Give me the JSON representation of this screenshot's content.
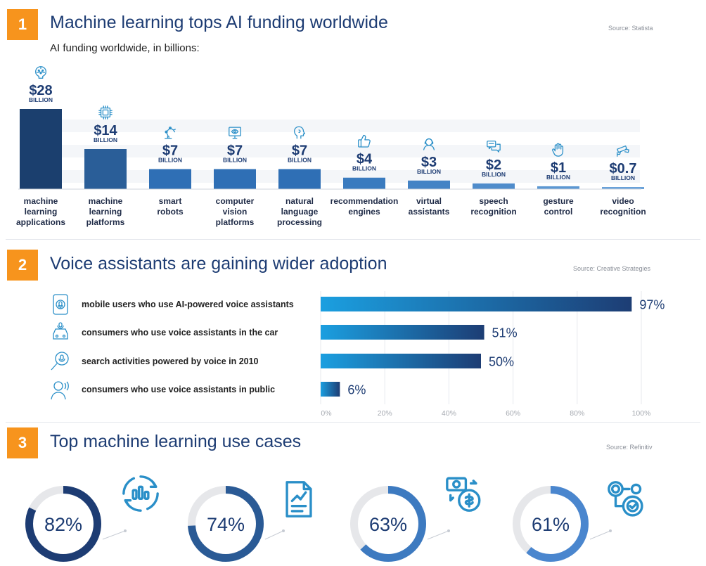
{
  "sections": [
    {
      "number": "1",
      "title": "Machine learning tops AI funding worldwide",
      "source": "Source: Statista",
      "subtitle": "AI funding worldwide, in billions:"
    },
    {
      "number": "2",
      "title": "Voice assistants are gaining wider adoption",
      "source": "Source: Creative Strategies"
    },
    {
      "number": "3",
      "title": "Top machine learning use cases",
      "source": "Source: Refinitiv"
    }
  ],
  "chart_data": [
    {
      "type": "bar",
      "title": "AI funding worldwide, in billions:",
      "unit_label": "BILLION",
      "categories": [
        [
          "machine",
          "learning",
          "applications"
        ],
        [
          "machine",
          "learning",
          "platforms"
        ],
        [
          "smart",
          "robots"
        ],
        [
          "computer",
          "vision",
          "platforms"
        ],
        [
          "natural",
          "language",
          "processing"
        ],
        [
          "recommendation",
          "engines"
        ],
        [
          "virtual",
          "assistants"
        ],
        [
          "speech",
          "recognition"
        ],
        [
          "gesture",
          "control"
        ],
        [
          "video",
          "recognition"
        ]
      ],
      "values": [
        28,
        14,
        7,
        7,
        7,
        4,
        3,
        2,
        1,
        0.7
      ],
      "value_labels": [
        "$28",
        "$14",
        "$7",
        "$7",
        "$7",
        "$4",
        "$3",
        "$2",
        "$1",
        "$0.7"
      ],
      "icons": [
        "brain-circuit-icon",
        "chip-icon",
        "robot-arm-icon",
        "monitor-eye-icon",
        "head-speech-icon",
        "thumbs-up-icon",
        "assistant-avatar-icon",
        "chat-bubbles-icon",
        "raised-hand-icon",
        "security-camera-icon"
      ],
      "colors": [
        "#1b3f6e",
        "#2a5e98",
        "#2f6fb5",
        "#2f6fb5",
        "#2f6fb5",
        "#3a7bbf",
        "#4483c5",
        "#4f8ccb",
        "#5b97d2",
        "#6aa2d9"
      ]
    },
    {
      "type": "bar",
      "orientation": "horizontal",
      "categories": [
        "mobile users who use AI-powered voice assistants",
        "consumers who use voice assistants in the car",
        "search activities powered by voice in 2010",
        "consumers who use voice assistants in public"
      ],
      "values": [
        97,
        51,
        50,
        6
      ],
      "value_labels": [
        "97%",
        "51%",
        "50%",
        "6%"
      ],
      "icons": [
        "phone-mic-icon",
        "car-mic-icon",
        "magnifier-mic-icon",
        "person-speaking-icon"
      ],
      "xlim": [
        0,
        100
      ],
      "x_ticks": [
        "0%",
        "20%",
        "40%",
        "60%",
        "80%",
        "100%"
      ],
      "gradient": [
        "#1b9fe0",
        "#1d3d74"
      ]
    },
    {
      "type": "pie",
      "values": [
        82,
        74,
        63,
        61
      ],
      "value_labels": [
        "82%",
        "74%",
        "63%",
        "61%"
      ],
      "icons": [
        "analytics-cycle-icon",
        "report-chart-icon",
        "payment-exchange-icon",
        "gears-check-icon"
      ],
      "colors": [
        "#1d3c73",
        "#2a5a95",
        "#3d7ac0",
        "#4a86ce"
      ],
      "track_color": "#e6e7ea"
    }
  ]
}
